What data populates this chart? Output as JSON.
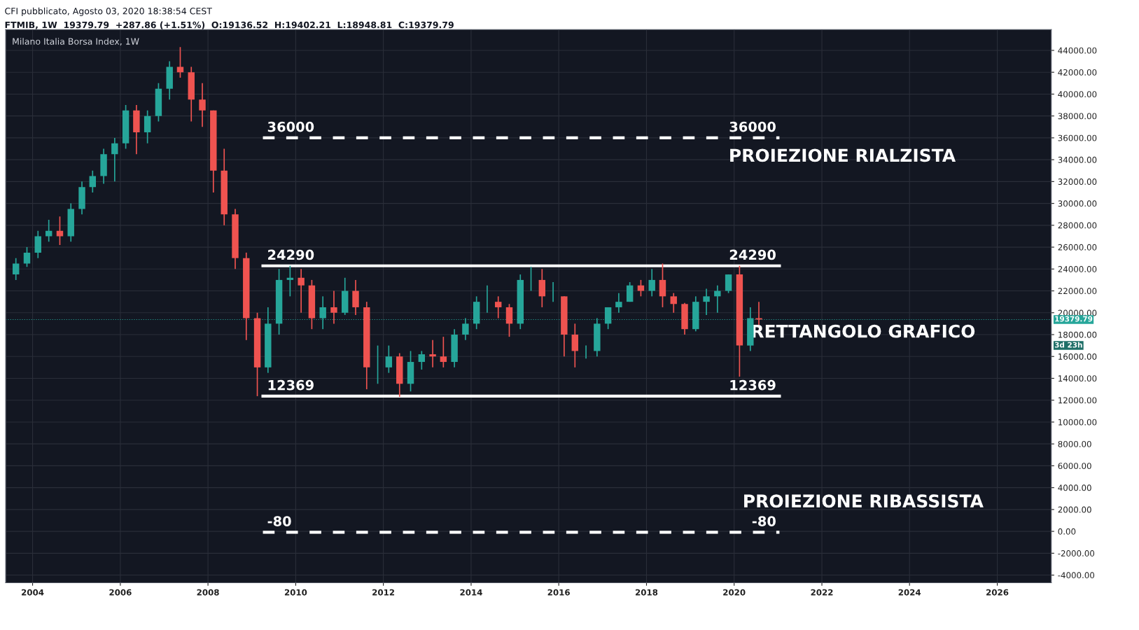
{
  "chart_data": {
    "type": "candlestick",
    "title": "Milano Italia Borsa Index, 1W",
    "subtitle": "CFI pubblicato, Agosto 03, 2020 18:38:54 CEST",
    "annotations": [
      "FTMIB, 1W  19379.79  +287.86 (+1.51%)  O:19136.52  H:19402.21  L:18948.81  C:19379.79",
      "3d 23h",
      "PROIEZIONE RIALZISTA",
      "RETTANGOLO GRAFICO",
      "PROIEZIONE RIBASSISTA"
    ],
    "x": [
      "2003-08-15",
      "2003-11-15",
      "2004-02-15",
      "2004-05-15",
      "2004-08-15",
      "2004-11-15",
      "2005-02-15",
      "2005-05-15",
      "2005-08-15",
      "2005-11-15",
      "2006-02-15",
      "2006-05-15",
      "2006-08-15",
      "2006-11-15",
      "2007-02-15",
      "2007-05-15",
      "2007-08-15",
      "2007-11-15",
      "2008-02-15",
      "2008-05-15",
      "2008-08-15",
      "2008-11-15",
      "2009-02-15",
      "2009-05-15",
      "2009-08-15",
      "2009-11-15",
      "2010-02-15",
      "2010-05-15",
      "2010-08-15",
      "2010-11-15",
      "2011-02-15",
      "2011-05-15",
      "2011-08-15",
      "2011-11-15",
      "2012-02-15",
      "2012-05-15",
      "2012-08-15",
      "2012-11-15",
      "2013-02-15",
      "2013-05-15",
      "2013-08-15",
      "2013-11-15",
      "2014-02-15",
      "2014-05-15",
      "2014-08-15",
      "2014-11-15",
      "2015-02-15",
      "2015-05-15",
      "2015-08-15",
      "2015-11-15",
      "2016-02-15",
      "2016-05-15",
      "2016-08-15",
      "2016-11-15",
      "2017-02-15",
      "2017-05-15",
      "2017-08-15",
      "2017-11-15",
      "2018-02-15",
      "2018-05-15",
      "2018-08-15",
      "2018-11-15",
      "2019-02-15",
      "2019-05-15",
      "2019-08-15",
      "2019-11-15",
      "2020-02-15",
      "2020-05-15",
      "2020-07-25"
    ],
    "ohlc": [
      [
        23500,
        25000,
        23000,
        24500
      ],
      [
        24500,
        26000,
        24200,
        25500
      ],
      [
        25500,
        27500,
        25000,
        27000
      ],
      [
        27000,
        28500,
        26500,
        27500
      ],
      [
        27500,
        28800,
        26200,
        27000
      ],
      [
        27000,
        30000,
        26500,
        29500
      ],
      [
        29500,
        32000,
        29000,
        31500
      ],
      [
        31500,
        33000,
        31000,
        32500
      ],
      [
        32500,
        35000,
        31800,
        34500
      ],
      [
        34500,
        36000,
        32000,
        35500
      ],
      [
        35500,
        39000,
        35000,
        38500
      ],
      [
        38500,
        39000,
        34500,
        36500
      ],
      [
        36500,
        38500,
        35500,
        38000
      ],
      [
        38000,
        41000,
        37500,
        40500
      ],
      [
        40500,
        43000,
        39500,
        42500
      ],
      [
        42500,
        44300,
        41500,
        42000
      ],
      [
        42000,
        42500,
        37500,
        39500
      ],
      [
        39500,
        41000,
        37000,
        38500
      ],
      [
        38500,
        38500,
        31000,
        33000
      ],
      [
        33000,
        35000,
        28000,
        29000
      ],
      [
        29000,
        29500,
        24000,
        25000
      ],
      [
        25000,
        25500,
        17500,
        19500
      ],
      [
        19500,
        20000,
        12369,
        15000
      ],
      [
        15000,
        20500,
        14500,
        19000
      ],
      [
        19000,
        24000,
        18000,
        23000
      ],
      [
        23000,
        24300,
        21500,
        23200
      ],
      [
        23200,
        24000,
        20000,
        22500
      ],
      [
        22500,
        23000,
        18500,
        19500
      ],
      [
        19500,
        21500,
        18500,
        20500
      ],
      [
        20500,
        22000,
        19000,
        20000
      ],
      [
        20000,
        23200,
        19800,
        22000
      ],
      [
        22000,
        23000,
        19800,
        20500
      ],
      [
        20500,
        21000,
        13000,
        15000
      ],
      [
        15000,
        17000,
        13500,
        15000
      ],
      [
        15000,
        17000,
        14500,
        16000
      ],
      [
        16000,
        16300,
        12300,
        13500
      ],
      [
        13500,
        16500,
        12800,
        15500
      ],
      [
        15500,
        16500,
        14800,
        16200
      ],
      [
        16200,
        17500,
        15000,
        16000
      ],
      [
        16000,
        17800,
        15000,
        15500
      ],
      [
        15500,
        18500,
        15000,
        18000
      ],
      [
        18000,
        19500,
        17500,
        19000
      ],
      [
        19000,
        21500,
        18500,
        21000
      ],
      [
        21000,
        22500,
        20000,
        21000
      ],
      [
        21000,
        21500,
        19500,
        20500
      ],
      [
        20500,
        20800,
        17800,
        19000
      ],
      [
        19000,
        23500,
        18500,
        23000
      ],
      [
        23000,
        24200,
        22000,
        23000
      ],
      [
        23000,
        24000,
        20500,
        21500
      ],
      [
        21500,
        22800,
        21000,
        21500
      ],
      [
        21500,
        21500,
        16000,
        18000
      ],
      [
        18000,
        19000,
        15000,
        16500
      ],
      [
        16500,
        17000,
        15800,
        16500
      ],
      [
        16500,
        19500,
        16000,
        19000
      ],
      [
        19000,
        20500,
        18500,
        20500
      ],
      [
        20500,
        21800,
        20000,
        21000
      ],
      [
        21000,
        22800,
        21000,
        22500
      ],
      [
        22500,
        23000,
        21500,
        22000
      ],
      [
        22000,
        24000,
        21500,
        23000
      ],
      [
        23000,
        24500,
        20500,
        21500
      ],
      [
        21500,
        21800,
        20000,
        20800
      ],
      [
        20800,
        20900,
        18000,
        18500
      ],
      [
        18500,
        21500,
        18300,
        21000
      ],
      [
        21000,
        22200,
        19800,
        21500
      ],
      [
        21500,
        22500,
        20000,
        22000
      ],
      [
        22000,
        23500,
        21800,
        23500
      ],
      [
        23500,
        24300,
        14150,
        17000
      ],
      [
        17000,
        20500,
        16500,
        19500
      ],
      [
        19500,
        21000,
        18900,
        19379.79
      ]
    ],
    "colors": [
      "#26a69a",
      "#26a69a",
      "#26a69a",
      "#26a69a",
      "#ef5350",
      "#26a69a",
      "#26a69a",
      "#26a69a",
      "#26a69a",
      "#26a69a",
      "#26a69a",
      "#ef5350",
      "#26a69a",
      "#26a69a",
      "#26a69a",
      "#ef5350",
      "#ef5350",
      "#ef5350",
      "#ef5350",
      "#ef5350",
      "#ef5350",
      "#ef5350",
      "#ef5350",
      "#26a69a",
      "#26a69a",
      "#26a69a",
      "#ef5350",
      "#ef5350",
      "#26a69a",
      "#ef5350",
      "#26a69a",
      "#ef5350",
      "#ef5350",
      "#26a69a",
      "#26a69a",
      "#ef5350",
      "#26a69a",
      "#26a69a",
      "#ef5350",
      "#ef5350",
      "#26a69a",
      "#26a69a",
      "#26a69a",
      "#26a69a",
      "#ef5350",
      "#ef5350",
      "#26a69a",
      "#26a69a",
      "#ef5350",
      "#26a69a",
      "#ef5350",
      "#ef5350",
      "#26a69a",
      "#26a69a",
      "#26a69a",
      "#26a69a",
      "#26a69a",
      "#ef5350",
      "#26a69a",
      "#ef5350",
      "#ef5350",
      "#ef5350",
      "#26a69a",
      "#26a69a",
      "#26a69a",
      "#26a69a",
      "#ef5350",
      "#26a69a",
      "#ef5350"
    ],
    "xlim": [
      "2003-05-22",
      "2027-03-27"
    ],
    "ylim": [
      -4700,
      45900
    ],
    "xticks": [
      {
        "value": "2004-01-01",
        "label": "2004"
      },
      {
        "value": "2006-01-01",
        "label": "2006"
      },
      {
        "value": "2008-01-01",
        "label": "2008"
      },
      {
        "value": "2010-01-01",
        "label": "2010"
      },
      {
        "value": "2012-01-01",
        "label": "2012"
      },
      {
        "value": "2014-01-01",
        "label": "2014"
      },
      {
        "value": "2016-01-01",
        "label": "2016"
      },
      {
        "value": "2018-01-01",
        "label": "2018"
      },
      {
        "value": "2020-01-01",
        "label": "2020"
      },
      {
        "value": "2022-01-01",
        "label": "2022"
      },
      {
        "value": "2024-01-01",
        "label": "2024"
      },
      {
        "value": "2026-01-01",
        "label": "2026"
      }
    ],
    "yticks": [
      {
        "value": -4000,
        "label": "-4000.00"
      },
      {
        "value": -2000,
        "label": "-2000.00"
      },
      {
        "value": 0,
        "label": "0.00"
      },
      {
        "value": 2000,
        "label": "2000.00"
      },
      {
        "value": 4000,
        "label": "4000.00"
      },
      {
        "value": 6000,
        "label": "6000.00"
      },
      {
        "value": 8000,
        "label": "8000.00"
      },
      {
        "value": 10000,
        "label": "10000.00"
      },
      {
        "value": 12000,
        "label": "12000.00"
      },
      {
        "value": 14000,
        "label": "14000.00"
      },
      {
        "value": 16000,
        "label": "16000.00"
      },
      {
        "value": 18000,
        "label": "18000.00"
      },
      {
        "value": 20000,
        "label": "20000.00"
      },
      {
        "value": 22000,
        "label": "22000.00"
      },
      {
        "value": 24000,
        "label": "24000.00"
      },
      {
        "value": 26000,
        "label": "26000.00"
      },
      {
        "value": 28000,
        "label": "28000.00"
      },
      {
        "value": 30000,
        "label": "30000.00"
      },
      {
        "value": 32000,
        "label": "32000.00"
      },
      {
        "value": 34000,
        "label": "34000.00"
      },
      {
        "value": 36000,
        "label": "36000.00"
      },
      {
        "value": 38000,
        "label": "38000.00"
      },
      {
        "value": 40000,
        "label": "40000.00"
      },
      {
        "value": 42000,
        "label": "42000.00"
      },
      {
        "value": 44000,
        "label": "44000.00"
      }
    ],
    "ref_lines": [
      {
        "axis": "y",
        "value": 36000,
        "label": "36000",
        "color": "#ffffff",
        "line_style": "dashed"
      },
      {
        "axis": "y",
        "value": 24290,
        "label": "24290",
        "color": "#ffffff",
        "line_style": "solid"
      },
      {
        "axis": "y",
        "value": 12369,
        "label": "12369",
        "color": "#ffffff",
        "line_style": "solid"
      },
      {
        "axis": "y",
        "value": -80,
        "label": "-80",
        "color": "#ffffff",
        "line_style": "dashed"
      },
      {
        "axis": "y",
        "value": 19379.79,
        "label": "19379.79",
        "color": "#26a69a",
        "line_style": "dotted"
      }
    ],
    "grid": true
  }
}
